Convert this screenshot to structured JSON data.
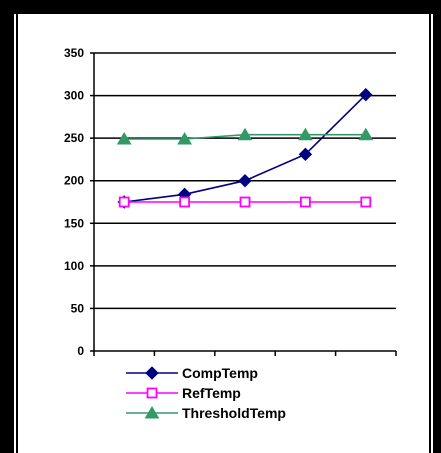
{
  "chart_data": {
    "type": "line",
    "title": "",
    "xlabel": "",
    "ylabel": "",
    "categories": [
      "",
      "",
      "",
      "",
      ""
    ],
    "ylim": [
      0,
      350
    ],
    "yticks": [
      0,
      50,
      100,
      150,
      200,
      250,
      300,
      350
    ],
    "ytick_labels": [
      "0",
      "50",
      "100",
      "150",
      "200",
      "250",
      "300",
      "350"
    ],
    "grid": "horizontal",
    "legend_position": "bottom",
    "series": [
      {
        "name": "CompTemp",
        "values": [
          175,
          184,
          200,
          231,
          301
        ],
        "color": "#000080",
        "marker": "diamond"
      },
      {
        "name": "RefTemp",
        "values": [
          175,
          175,
          175,
          175,
          175
        ],
        "color": "#ff00ff",
        "marker": "square"
      },
      {
        "name": "ThresholdTemp",
        "values": [
          249,
          249,
          254,
          254,
          254
        ],
        "color": "#339966",
        "marker": "triangle"
      }
    ]
  }
}
